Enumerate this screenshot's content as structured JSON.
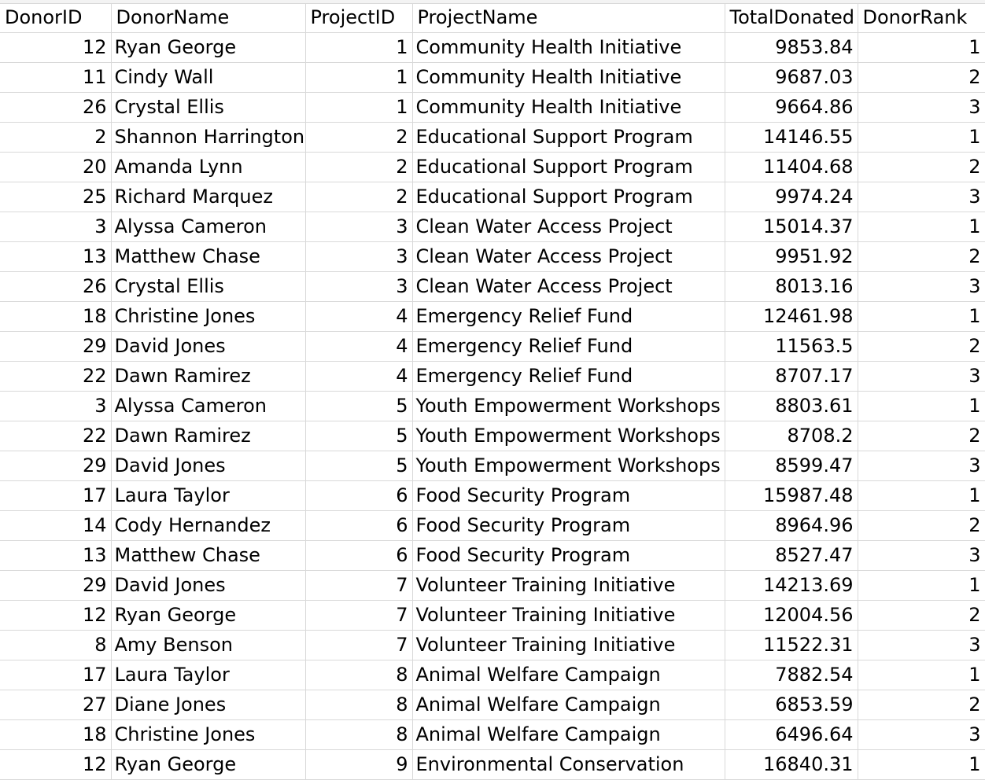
{
  "columns": [
    "DonorID",
    "DonorName",
    "ProjectID",
    "ProjectName",
    "TotalDonated",
    "DonorRank"
  ],
  "rows": [
    [
      "12",
      "Ryan George",
      "1",
      "Community Health Initiative",
      "9853.84",
      "1"
    ],
    [
      "11",
      "Cindy Wall",
      "1",
      "Community Health Initiative",
      "9687.03",
      "2"
    ],
    [
      "26",
      "Crystal Ellis",
      "1",
      "Community Health Initiative",
      "9664.86",
      "3"
    ],
    [
      "2",
      "Shannon Harrington",
      "2",
      "Educational Support Program",
      "14146.55",
      "1"
    ],
    [
      "20",
      "Amanda Lynn",
      "2",
      "Educational Support Program",
      "11404.68",
      "2"
    ],
    [
      "25",
      "Richard Marquez",
      "2",
      "Educational Support Program",
      "9974.24",
      "3"
    ],
    [
      "3",
      "Alyssa Cameron",
      "3",
      "Clean Water Access Project",
      "15014.37",
      "1"
    ],
    [
      "13",
      "Matthew Chase",
      "3",
      "Clean Water Access Project",
      "9951.92",
      "2"
    ],
    [
      "26",
      "Crystal Ellis",
      "3",
      "Clean Water Access Project",
      "8013.16",
      "3"
    ],
    [
      "18",
      "Christine Jones",
      "4",
      "Emergency Relief Fund",
      "12461.98",
      "1"
    ],
    [
      "29",
      "David Jones",
      "4",
      "Emergency Relief Fund",
      "11563.5",
      "2"
    ],
    [
      "22",
      "Dawn Ramirez",
      "4",
      "Emergency Relief Fund",
      "8707.17",
      "3"
    ],
    [
      "3",
      "Alyssa Cameron",
      "5",
      "Youth Empowerment Workshops",
      "8803.61",
      "1"
    ],
    [
      "22",
      "Dawn Ramirez",
      "5",
      "Youth Empowerment Workshops",
      "8708.2",
      "2"
    ],
    [
      "29",
      "David Jones",
      "5",
      "Youth Empowerment Workshops",
      "8599.47",
      "3"
    ],
    [
      "17",
      "Laura Taylor",
      "6",
      "Food Security Program",
      "15987.48",
      "1"
    ],
    [
      "14",
      "Cody Hernandez",
      "6",
      "Food Security Program",
      "8964.96",
      "2"
    ],
    [
      "13",
      "Matthew Chase",
      "6",
      "Food Security Program",
      "8527.47",
      "3"
    ],
    [
      "29",
      "David Jones",
      "7",
      "Volunteer Training Initiative",
      "14213.69",
      "1"
    ],
    [
      "12",
      "Ryan George",
      "7",
      "Volunteer Training Initiative",
      "12004.56",
      "2"
    ],
    [
      "8",
      "Amy Benson",
      "7",
      "Volunteer Training Initiative",
      "11522.31",
      "3"
    ],
    [
      "17",
      "Laura Taylor",
      "8",
      "Animal Welfare Campaign",
      "7882.54",
      "1"
    ],
    [
      "27",
      "Diane Jones",
      "8",
      "Animal Welfare Campaign",
      "6853.59",
      "2"
    ],
    [
      "18",
      "Christine Jones",
      "8",
      "Animal Welfare Campaign",
      "6496.64",
      "3"
    ],
    [
      "12",
      "Ryan George",
      "9",
      "Environmental Conservation",
      "16840.31",
      "1"
    ]
  ]
}
